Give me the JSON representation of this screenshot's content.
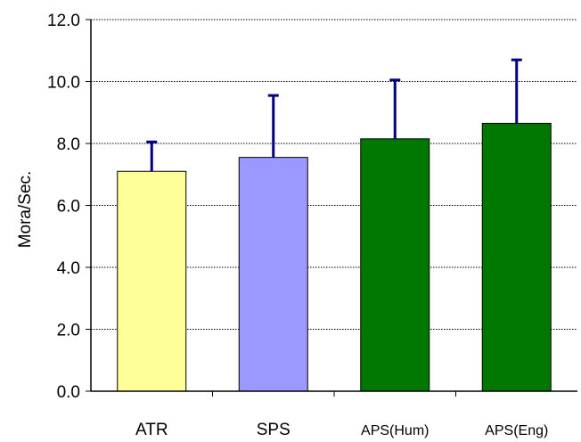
{
  "chart_data": {
    "type": "bar",
    "ylabel": "Mora/Sec.",
    "xlabel": "",
    "ylim": [
      0,
      12
    ],
    "y_ticks": [
      0,
      2,
      4,
      6,
      8,
      10,
      12
    ],
    "y_tick_labels": [
      "0.0",
      "2.0",
      "4.0",
      "6.0",
      "8.0",
      "10.0",
      "12.0"
    ],
    "grid": "horizontal dotted",
    "categories": [
      "ATR",
      "SPS",
      "APS(Hum)",
      "APS(Eng)"
    ],
    "values": [
      7.1,
      7.55,
      8.15,
      8.65
    ],
    "error_upper": [
      0.95,
      2.0,
      1.9,
      2.05
    ],
    "colors": {
      "bars": [
        "#ffff99",
        "#9999ff",
        "#007700",
        "#007700"
      ],
      "error_bars": "#000080",
      "grid": "#000000"
    }
  }
}
